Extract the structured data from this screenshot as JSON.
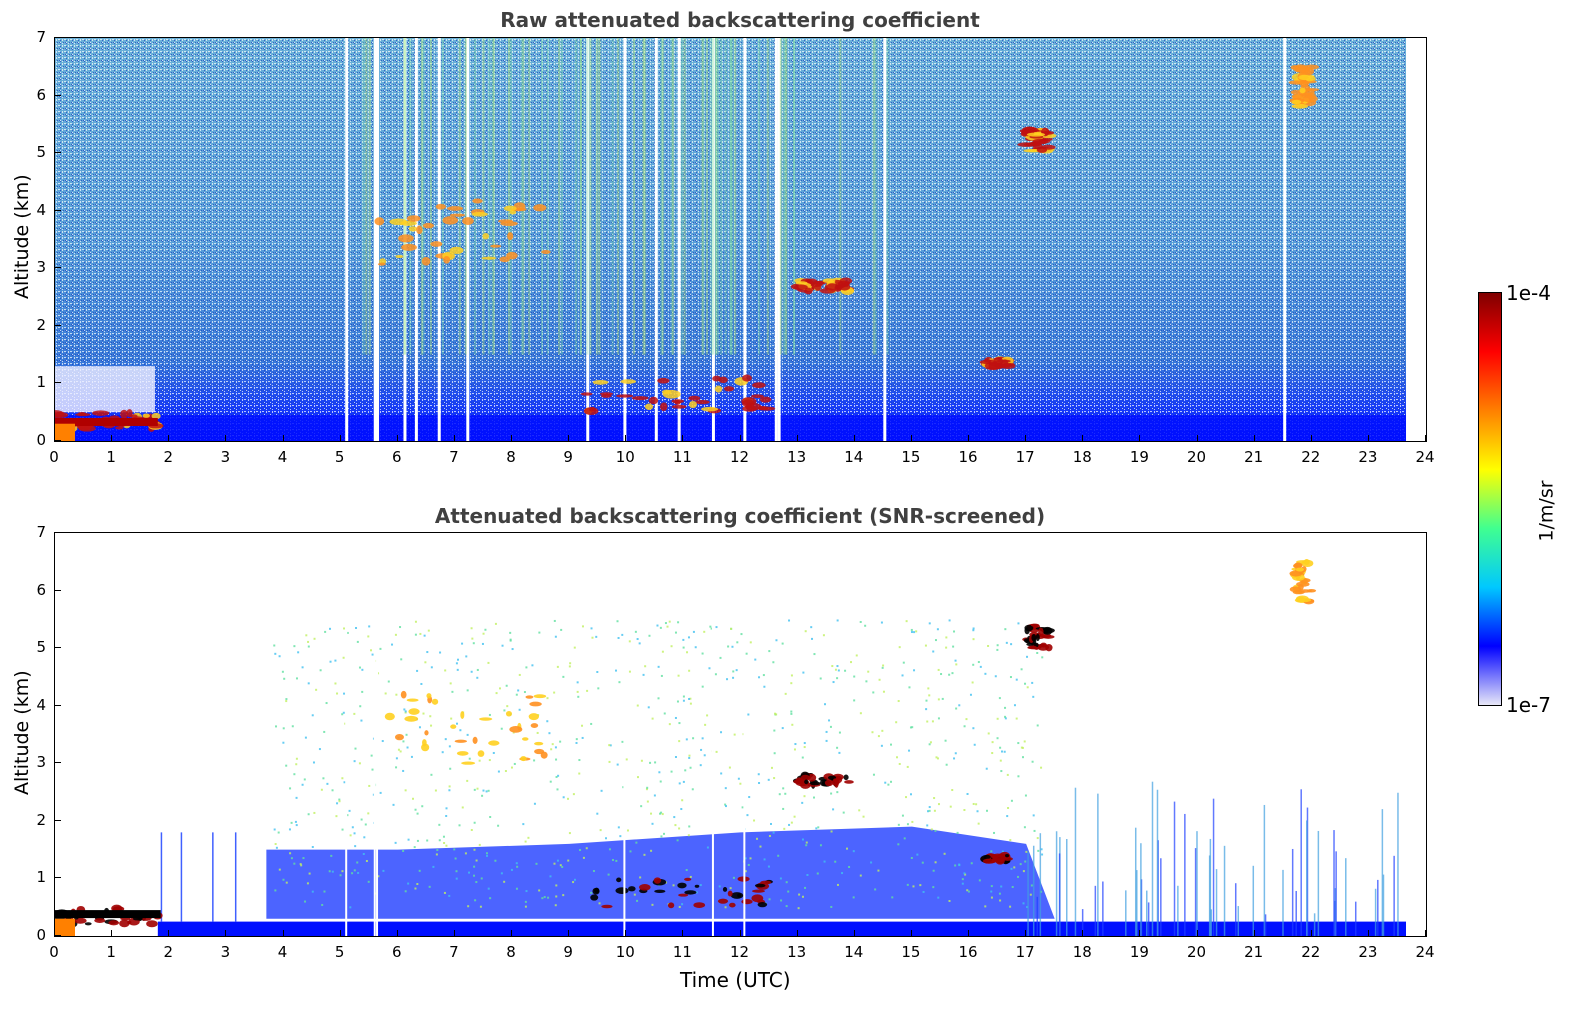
{
  "chart_data": [
    {
      "type": "heatmap",
      "title": "Raw attenuated backscattering coefficient",
      "xlabel": "",
      "ylabel": "Altitude (km)",
      "xlim": [
        0,
        24
      ],
      "ylim": [
        0,
        7
      ],
      "xticks": [
        "0",
        "1",
        "2",
        "3",
        "4",
        "5",
        "6",
        "7",
        "8",
        "9",
        "10",
        "11",
        "12",
        "13",
        "14",
        "15",
        "16",
        "17",
        "18",
        "19",
        "20",
        "21",
        "22",
        "23",
        "24"
      ],
      "yticks": [
        "0",
        "1",
        "2",
        "3",
        "4",
        "5",
        "6",
        "7"
      ],
      "features": [
        {
          "name": "boundary layer aerosol",
          "x": [
            0,
            1.8
          ],
          "y": [
            0.2,
            0.5
          ],
          "level": "high"
        },
        {
          "name": "mid-level cloud",
          "x": [
            5.6,
            8.6
          ],
          "y": [
            3.0,
            4.2
          ],
          "level": "medium-high"
        },
        {
          "name": "cloud layer",
          "x": [
            9.3,
            12.5
          ],
          "y": [
            0.5,
            1.1
          ],
          "level": "high"
        },
        {
          "name": "cloud layer",
          "x": [
            13.0,
            13.9
          ],
          "y": [
            2.6,
            2.8
          ],
          "level": "high"
        },
        {
          "name": "cloud layer",
          "x": [
            16.3,
            16.7
          ],
          "y": [
            1.3,
            1.4
          ],
          "level": "high"
        },
        {
          "name": "high cloud",
          "x": [
            17.0,
            17.4
          ],
          "y": [
            5.0,
            5.4
          ],
          "level": "high"
        },
        {
          "name": "high cloud",
          "x": [
            21.7,
            22.0
          ],
          "y": [
            5.8,
            6.5
          ],
          "level": "medium-high"
        }
      ]
    },
    {
      "type": "heatmap",
      "title": "Attenuated backscattering coefficient (SNR-screened)",
      "xlabel": "Time (UTC)",
      "ylabel": "Altitude (km)",
      "xlim": [
        0,
        24
      ],
      "ylim": [
        0,
        7
      ],
      "xticks": [
        "0",
        "1",
        "2",
        "3",
        "4",
        "5",
        "6",
        "7",
        "8",
        "9",
        "10",
        "11",
        "12",
        "13",
        "14",
        "15",
        "16",
        "17",
        "18",
        "19",
        "20",
        "21",
        "22",
        "23",
        "24"
      ],
      "yticks": [
        "0",
        "1",
        "2",
        "3",
        "4",
        "5",
        "6",
        "7"
      ]
    }
  ],
  "colorbar": {
    "min_label": "1e-7",
    "max_label": "1e-4",
    "unit": "1/m/sr",
    "scale": "log",
    "colors": [
      "#e8e8f8",
      "#0000ff",
      "#00c8ff",
      "#40ff90",
      "#ffff00",
      "#ff8000",
      "#ff0000",
      "#800000"
    ]
  }
}
